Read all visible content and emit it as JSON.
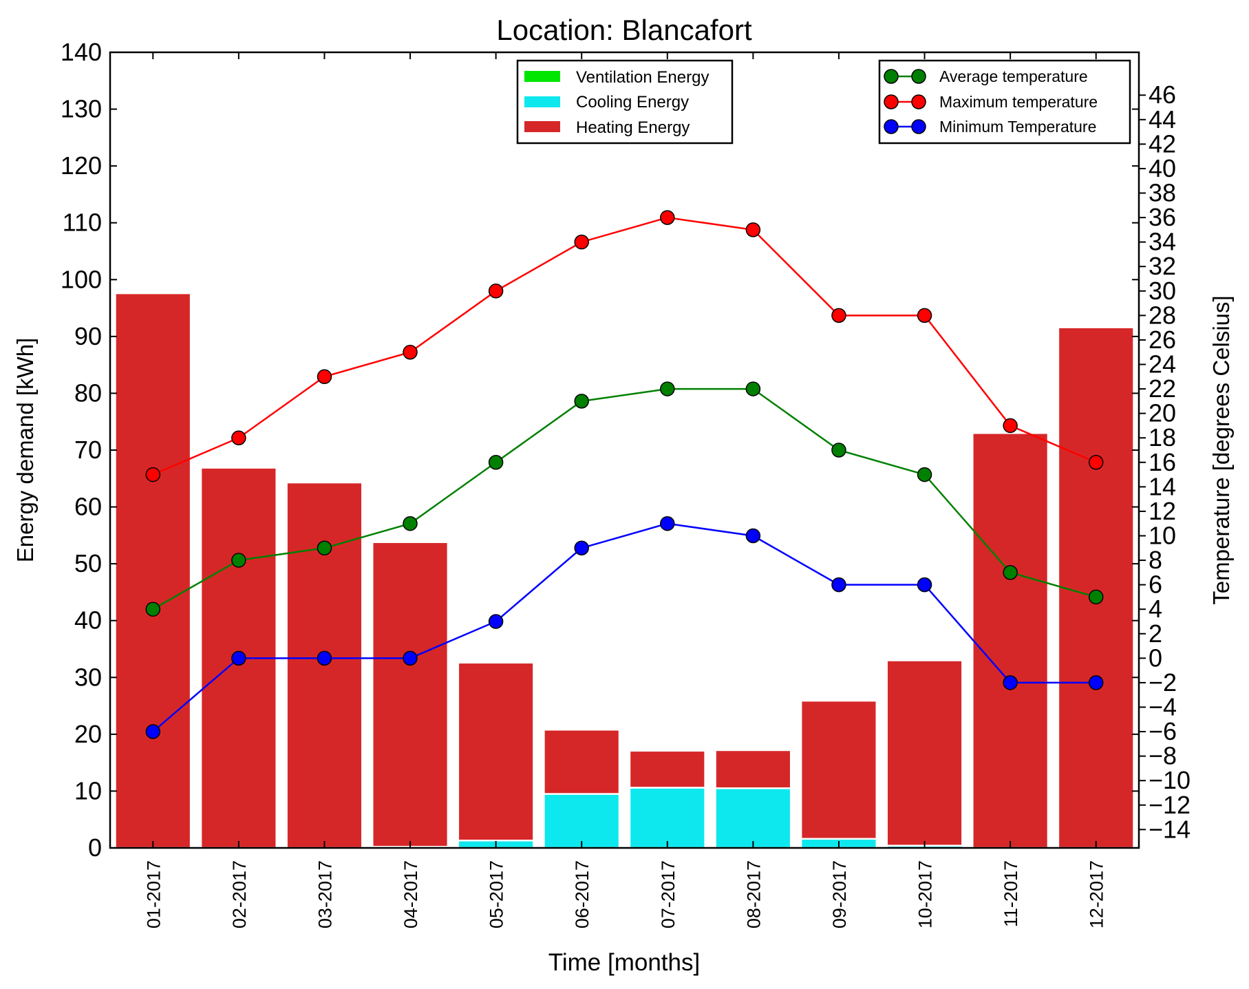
{
  "chart_data": {
    "type": "bar",
    "title": "Location: Blancafort",
    "xlabel": "Time [months]",
    "ylabel": "Energy demand [kWh]",
    "y2label": "Temperature [degrees Celsius]",
    "ylim": [
      0,
      140
    ],
    "y2lim": [
      -15.5,
      49.5
    ],
    "yticks": [
      0,
      10,
      20,
      30,
      40,
      50,
      60,
      70,
      80,
      90,
      100,
      110,
      120,
      130,
      140
    ],
    "y2ticks": [
      -14,
      -12,
      -10,
      -8,
      -6,
      -4,
      -2,
      0,
      2,
      4,
      6,
      8,
      10,
      12,
      14,
      16,
      18,
      20,
      22,
      24,
      26,
      28,
      30,
      32,
      34,
      36,
      38,
      40,
      42,
      44,
      46
    ],
    "grid": false,
    "categories": [
      "01-2017",
      "02-2017",
      "03-2017",
      "04-2017",
      "05-2017",
      "06-2017",
      "07-2017",
      "08-2017",
      "09-2017",
      "10-2017",
      "11-2017",
      "12-2017"
    ],
    "bar_series": [
      {
        "name": "Ventilation Energy",
        "color": "#00e600",
        "values": [
          0,
          0,
          0,
          0,
          0,
          0,
          0,
          0,
          0,
          0,
          0,
          0
        ]
      },
      {
        "name": "Cooling Energy",
        "color": "#0de8ee",
        "values": [
          0,
          0,
          0,
          0.2,
          1.3,
          9.5,
          10.6,
          10.5,
          1.6,
          0.4,
          0,
          0
        ]
      },
      {
        "name": "Heating Energy",
        "color": "#d62728",
        "values": [
          97.6,
          66.9,
          64.3,
          53.6,
          31.3,
          11.3,
          6.5,
          6.7,
          24.3,
          32.6,
          73,
          91.6
        ]
      }
    ],
    "line_series": [
      {
        "name": "Average temperature",
        "color": "#008000",
        "values": [
          4,
          8,
          9,
          11,
          16,
          21,
          22,
          22,
          17,
          15,
          7,
          5
        ]
      },
      {
        "name": "Maximum temperature",
        "color": "#ff0000",
        "values": [
          15,
          18,
          23,
          25,
          30,
          34,
          36,
          35,
          28,
          28,
          19,
          16
        ]
      },
      {
        "name": "Minimum Temperature",
        "color": "#0000ff",
        "values": [
          -6,
          0,
          0,
          0,
          3,
          9,
          11,
          10,
          6,
          6,
          -2,
          -2
        ]
      }
    ],
    "bar_legend_position": "upper center",
    "line_legend_position": "upper right"
  }
}
